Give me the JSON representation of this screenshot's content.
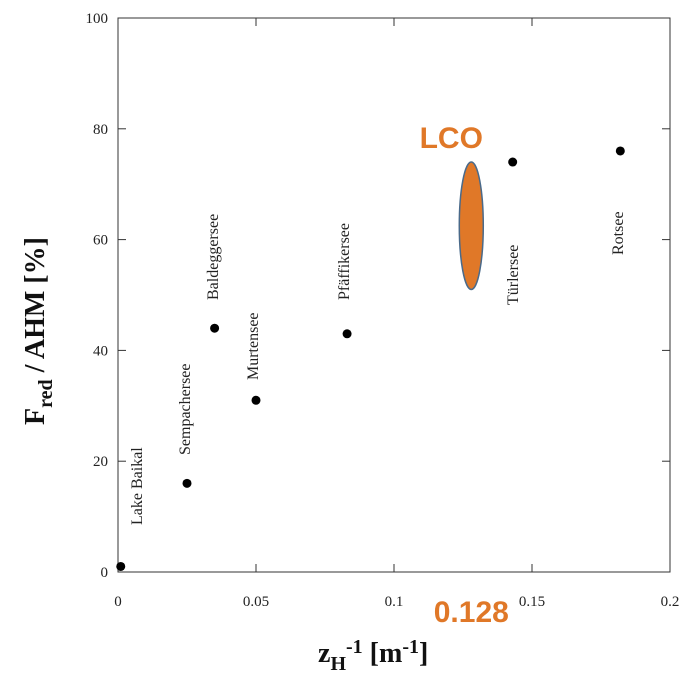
{
  "chart_data": {
    "type": "scatter",
    "x_label_parts": [
      {
        "text": "z"
      },
      {
        "text": "H",
        "shift": "sub"
      },
      {
        "text": "-1",
        "shift": "sup"
      },
      {
        "text": "   [m"
      },
      {
        "text": "-1",
        "shift": "sup"
      },
      {
        "text": "]"
      }
    ],
    "y_label_parts": [
      {
        "text": "F"
      },
      {
        "text": "red",
        "shift": "sub"
      },
      {
        "text": " / AHM   [%]"
      }
    ],
    "series": [
      {
        "names": [
          "Lake Baikal",
          "Sempachersee",
          "Baldeggersee",
          "Murtensee",
          "Pfäffikersee",
          "Türlersee",
          "Rotsee"
        ],
        "x": [
          0.001,
          0.025,
          0.035,
          0.05,
          0.083,
          0.143,
          0.182
        ],
        "values": [
          1,
          16,
          44,
          31,
          43,
          74,
          76
        ],
        "color": "#000000"
      }
    ],
    "highlight": {
      "label": "LCO",
      "x": 0.128,
      "range": [
        51,
        74
      ],
      "color": "#e07828"
    },
    "xlim": [
      0,
      0.2
    ],
    "xticks": [
      0,
      0.05,
      0.1,
      0.15,
      0.2
    ],
    "ylim": [
      0,
      100
    ],
    "yticks": [
      0,
      20,
      40,
      60,
      80,
      100
    ]
  }
}
